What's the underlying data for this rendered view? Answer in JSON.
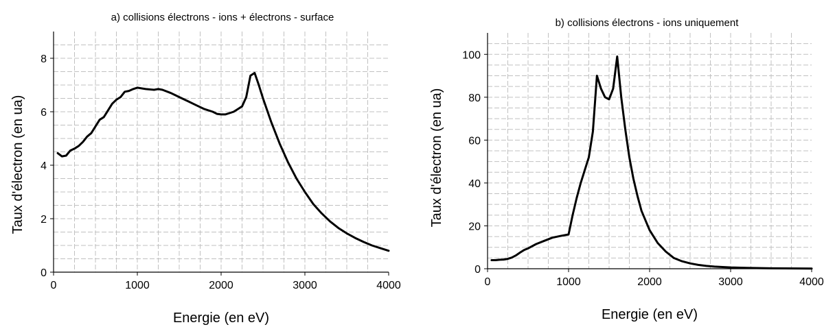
{
  "chart_data": [
    {
      "type": "line",
      "title": "a) collisions électrons - ions + électrons - surface",
      "xlabel": "Energie (en eV)",
      "ylabel": "Taux d'électron (en ua)",
      "xlim": [
        0,
        4000
      ],
      "ylim": [
        0,
        9
      ],
      "xticks": [
        0,
        1000,
        2000,
        3000,
        4000
      ],
      "yticks": [
        0,
        2,
        4,
        6,
        8
      ],
      "xtick_labels": [
        "0",
        "1000",
        "2000",
        "3000",
        "4000"
      ],
      "ytick_labels": [
        "0",
        "2",
        "4",
        "6",
        "8"
      ],
      "grid": true,
      "series": [
        {
          "x": [
            50,
            100,
            150,
            200,
            250,
            300,
            350,
            400,
            450,
            500,
            550,
            600,
            650,
            700,
            750,
            800,
            850,
            900,
            950,
            1000,
            1100,
            1200,
            1250,
            1300,
            1400,
            1500,
            1600,
            1700,
            1800,
            1900,
            1950,
            2000,
            2050,
            2100,
            2150,
            2200,
            2250,
            2300,
            2350,
            2400,
            2450,
            2500,
            2600,
            2700,
            2800,
            2900,
            3000,
            3100,
            3200,
            3300,
            3400,
            3500,
            3600,
            3700,
            3800,
            3900,
            4000
          ],
          "y": [
            4.45,
            4.33,
            4.36,
            4.55,
            4.62,
            4.72,
            4.87,
            5.07,
            5.2,
            5.45,
            5.7,
            5.8,
            6.05,
            6.3,
            6.45,
            6.55,
            6.75,
            6.78,
            6.85,
            6.9,
            6.85,
            6.82,
            6.85,
            6.82,
            6.7,
            6.55,
            6.4,
            6.25,
            6.1,
            6.0,
            5.92,
            5.9,
            5.9,
            5.95,
            6.0,
            6.1,
            6.2,
            6.55,
            7.35,
            7.45,
            7.0,
            6.5,
            5.6,
            4.8,
            4.1,
            3.5,
            3.0,
            2.55,
            2.2,
            1.9,
            1.65,
            1.45,
            1.28,
            1.13,
            1.0,
            0.9,
            0.8
          ]
        }
      ]
    },
    {
      "type": "line",
      "title": "b) collisions électrons - ions uniquement",
      "xlabel": "Energie (en eV)",
      "ylabel": "Taux d'électron (en ua)",
      "xlim": [
        0,
        4000
      ],
      "ylim": [
        0,
        110
      ],
      "xticks": [
        0,
        1000,
        2000,
        3000,
        4000
      ],
      "yticks": [
        0,
        20,
        40,
        60,
        80,
        100
      ],
      "xtick_labels": [
        "0",
        "1000",
        "2000",
        "3000",
        "4000"
      ],
      "ytick_labels": [
        "0",
        "20",
        "40",
        "60",
        "80",
        "100"
      ],
      "grid": true,
      "series": [
        {
          "x": [
            50,
            100,
            150,
            200,
            250,
            300,
            350,
            400,
            450,
            500,
            600,
            700,
            800,
            900,
            1000,
            1050,
            1100,
            1150,
            1200,
            1250,
            1300,
            1350,
            1400,
            1450,
            1500,
            1550,
            1600,
            1650,
            1700,
            1750,
            1800,
            1850,
            1900,
            2000,
            2100,
            2200,
            2300,
            2400,
            2500,
            2600,
            2700,
            2800,
            3000,
            3200,
            3500,
            4000
          ],
          "y": [
            4,
            4,
            4.2,
            4.3,
            4.6,
            5.2,
            6.2,
            7.5,
            8.7,
            9.5,
            11.5,
            13,
            14.5,
            15.3,
            16,
            25,
            33,
            40,
            46,
            52,
            64,
            90,
            84,
            80,
            79,
            84,
            99,
            80,
            65,
            52,
            42,
            34,
            27,
            18,
            12,
            8,
            5,
            3.5,
            2.5,
            1.8,
            1.3,
            1,
            0.6,
            0.4,
            0.2,
            0.1
          ]
        }
      ]
    }
  ]
}
